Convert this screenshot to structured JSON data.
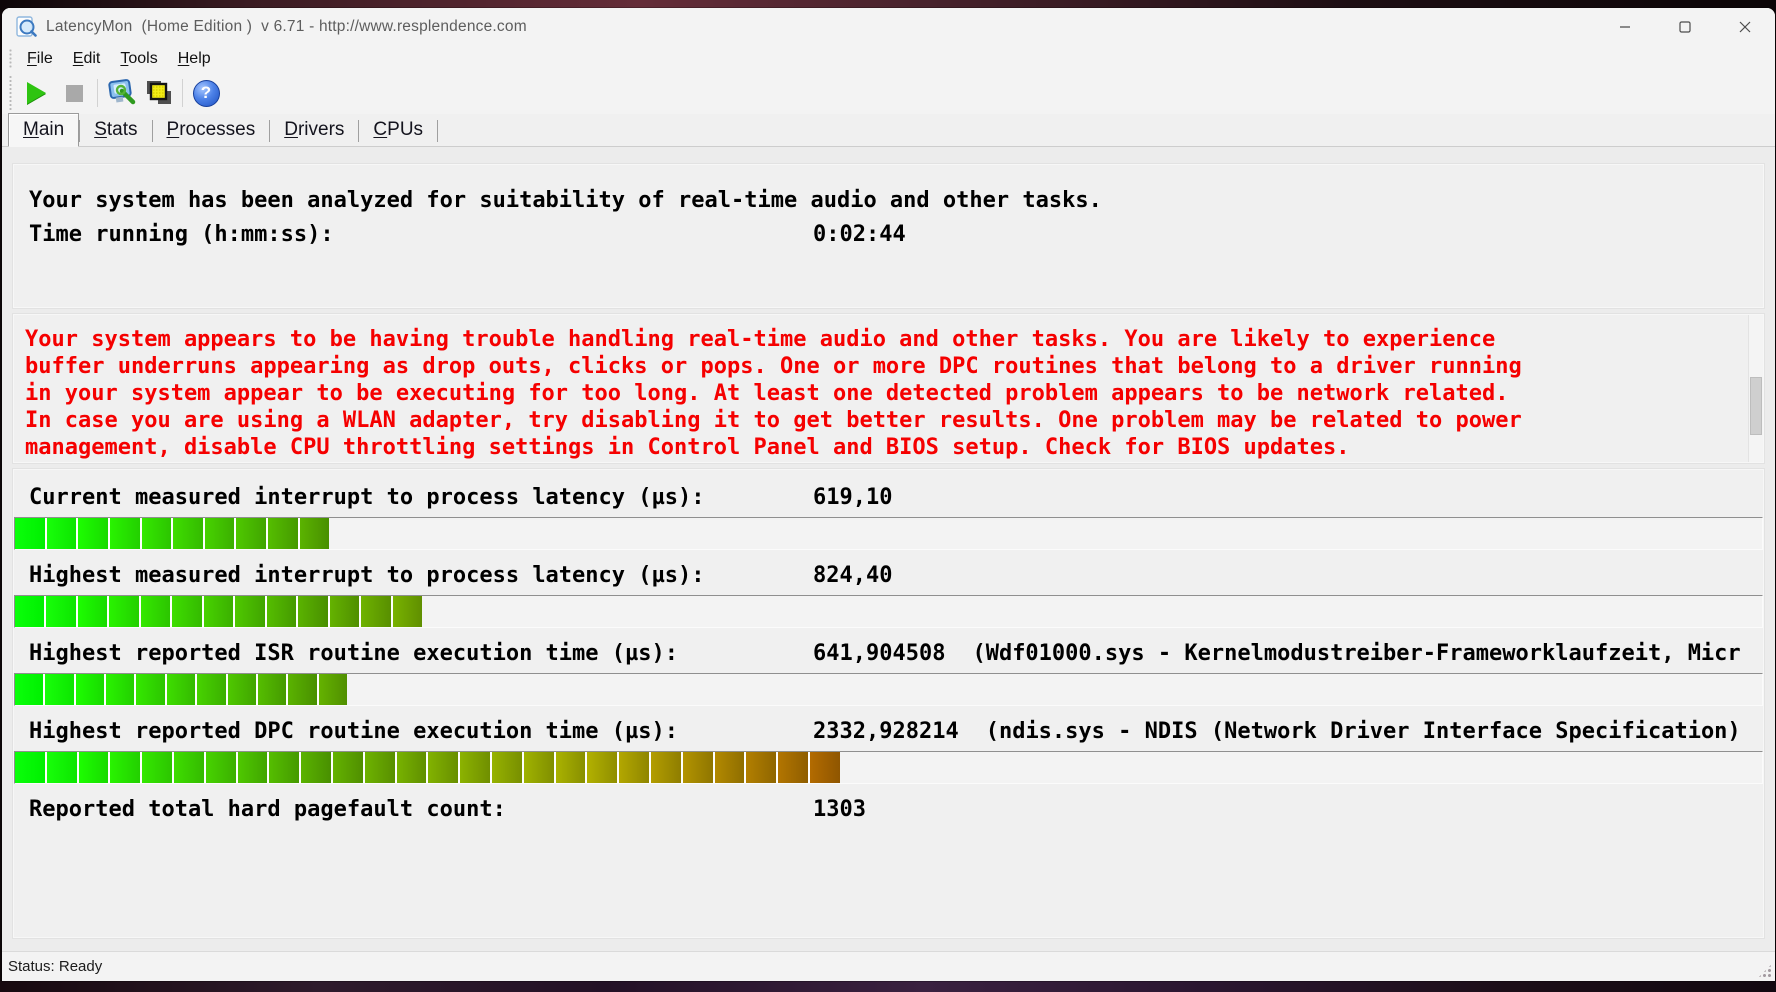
{
  "window": {
    "title": "LatencyMon  (Home Edition )  v 6.71 - http://www.resplendence.com"
  },
  "menu": {
    "items": [
      "File",
      "Edit",
      "Tools",
      "Help"
    ]
  },
  "toolbar": {
    "icons": [
      "start-icon",
      "stop-icon",
      "options-monitor-icon",
      "copy-report-icon",
      "help-icon"
    ],
    "help_glyph": "?"
  },
  "tabs": {
    "items": [
      "Main",
      "Stats",
      "Processes",
      "Drivers",
      "CPUs"
    ],
    "selected": "Main"
  },
  "report": {
    "headline": "Your system has been analyzed for suitability of real-time audio and other tasks.",
    "time_label": "Time running (h:mm:ss):",
    "time_value": "0:02:44"
  },
  "warning": {
    "lines": [
      "Your system appears to be having trouble handling real-time audio and other tasks. You are likely to experience",
      "buffer underruns appearing as drop outs, clicks or pops. One or more DPC routines that belong to a driver running",
      "in your system appear to be executing for too long. At least one detected problem appears to be network related.",
      "In case you are using a WLAN adapter, try disabling it to get better results. One problem may be related to power",
      "management, disable CPU throttling settings in Control Panel and BIOS setup. Check for BIOS updates."
    ]
  },
  "meters": [
    {
      "label": "Current measured interrupt to process latency (µs):",
      "value": "619,10",
      "extra": "",
      "segments": 10,
      "fill_pct": 18.0
    },
    {
      "label": "Highest measured interrupt to process latency (µs):",
      "value": "824,40",
      "extra": "",
      "segments": 13,
      "fill_pct": 23.3
    },
    {
      "label": "Highest reported ISR routine execution time (µs):",
      "value": "641,904508",
      "extra": "(Wdf01000.sys - Kernelmodustreiber-Frameworklaufzeit, Micr",
      "segments": 11,
      "fill_pct": 19.0
    },
    {
      "label": "Highest reported DPC routine execution time (µs):",
      "value": "2332,928214",
      "extra": "(ndis.sys - NDIS (Network Driver Interface Specification)",
      "segments": 26,
      "fill_pct": 47.2
    }
  ],
  "pagefault": {
    "label": "Reported total hard pagefault count:",
    "value": "1303"
  },
  "status_bar": {
    "text": "Status: Ready"
  },
  "colors": {
    "warning_text": "#f50000",
    "bar_first": "#00f000",
    "bar_last": "#8b5e00",
    "play_green": "#2ec411",
    "help_blue": "#2d62d6"
  },
  "bar_ramp": {
    "hue_start": 120,
    "hue_step": 3.36,
    "light_start": 47,
    "light_step": 2.1,
    "light_min": 28
  }
}
